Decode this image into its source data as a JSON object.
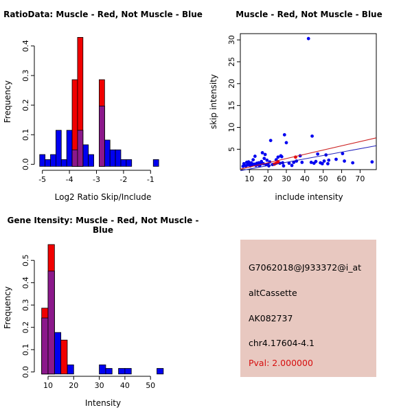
{
  "chart_data": [
    {
      "type": "bar",
      "subtype": "overlaid-histograms",
      "title": "RatioData: Muscle - Red, Not Muscle - Blue",
      "xlabel": "Log2 Ratio Skip/Include",
      "ylabel": "Frequency",
      "legend": {
        "muscle": "Red",
        "not_muscle": "Blue",
        "overlap": "Purple"
      },
      "xlim": [
        -5.2,
        -0.6
      ],
      "ylim": [
        0,
        0.43
      ],
      "grid": false,
      "bin_width": 0.2,
      "x_ticks": [
        {
          "v": -5,
          "l": "-5"
        },
        {
          "v": -4,
          "l": "-4"
        },
        {
          "v": -3,
          "l": "-3"
        },
        {
          "v": -2,
          "l": "-2"
        },
        {
          "v": -1,
          "l": "-1"
        }
      ],
      "y_ticks": [
        {
          "v": 0.0,
          "l": "0.0"
        },
        {
          "v": 0.1,
          "l": "0.1"
        },
        {
          "v": 0.2,
          "l": "0.2"
        },
        {
          "v": 0.3,
          "l": "0.3"
        },
        {
          "v": 0.4,
          "l": "0.4"
        }
      ],
      "blue_bins": [
        [
          -5.1,
          0.033
        ],
        [
          -4.9,
          0.016
        ],
        [
          -4.7,
          0.033
        ],
        [
          -4.5,
          0.115
        ],
        [
          -4.3,
          0.016
        ],
        [
          -4.1,
          0.115
        ],
        [
          -3.9,
          0.049
        ],
        [
          -3.7,
          0.115
        ],
        [
          -3.5,
          0.066
        ],
        [
          -3.3,
          0.033
        ],
        [
          -2.9,
          0.197
        ],
        [
          -2.7,
          0.082
        ],
        [
          -2.5,
          0.049
        ],
        [
          -2.3,
          0.049
        ],
        [
          -2.1,
          0.016
        ],
        [
          -1.9,
          0.016
        ],
        [
          -0.9,
          0.016
        ]
      ],
      "red_bins": [
        [
          -3.9,
          0.286
        ],
        [
          -3.7,
          0.429
        ],
        [
          -2.9,
          0.286
        ]
      ]
    },
    {
      "type": "scatter",
      "title": "Muscle - Red, Not Muscle - Blue",
      "xlabel": "include intensity",
      "ylabel": "skip intensity",
      "xlim": [
        5,
        79
      ],
      "ylim": [
        0.3,
        31.5
      ],
      "grid": false,
      "x_ticks": [
        {
          "v": 10,
          "l": "10"
        },
        {
          "v": 20,
          "l": "20"
        },
        {
          "v": 30,
          "l": "30"
        },
        {
          "v": 40,
          "l": "40"
        },
        {
          "v": 50,
          "l": "50"
        },
        {
          "v": 60,
          "l": "60"
        },
        {
          "v": 70,
          "l": "70"
        }
      ],
      "y_ticks": [
        {
          "v": 5,
          "l": "5"
        },
        {
          "v": 10,
          "l": "10"
        },
        {
          "v": 15,
          "l": "15"
        },
        {
          "v": 20,
          "l": "20"
        },
        {
          "v": 25,
          "l": "25"
        },
        {
          "v": 30,
          "l": "30"
        }
      ],
      "blue_points": [
        [
          6.5,
          1.1
        ],
        [
          7,
          1.7
        ],
        [
          8,
          1.2
        ],
        [
          8.5,
          2.0
        ],
        [
          9,
          1.4
        ],
        [
          9.5,
          2.1
        ],
        [
          10,
          1.6
        ],
        [
          10.5,
          1.2
        ],
        [
          11,
          1.9
        ],
        [
          11.5,
          1.4
        ],
        [
          12,
          2.6
        ],
        [
          12.5,
          1.6
        ],
        [
          13,
          3.4
        ],
        [
          13.5,
          1.3
        ],
        [
          14,
          1.8
        ],
        [
          14.5,
          1.5
        ],
        [
          15,
          1.9
        ],
        [
          15.5,
          1.2
        ],
        [
          16,
          1.6
        ],
        [
          16.5,
          2.2
        ],
        [
          17,
          4.2
        ],
        [
          17.5,
          1.7
        ],
        [
          18,
          2.9
        ],
        [
          18.5,
          3.8
        ],
        [
          19,
          1.5
        ],
        [
          19.5,
          2.5
        ],
        [
          20,
          1.6
        ],
        [
          20.5,
          1.2
        ],
        [
          21,
          2.1
        ],
        [
          21.5,
          7.0
        ],
        [
          22.5,
          1.5
        ],
        [
          23.5,
          1.6
        ],
        [
          24.5,
          2.6
        ],
        [
          25.5,
          3.2
        ],
        [
          26.5,
          1.8
        ],
        [
          27,
          3.5
        ],
        [
          27.5,
          3.3
        ],
        [
          28,
          1.9
        ],
        [
          28.5,
          1.2
        ],
        [
          29,
          8.3
        ],
        [
          30,
          6.5
        ],
        [
          31.5,
          1.8
        ],
        [
          33,
          1.3
        ],
        [
          34,
          2.0
        ],
        [
          35.5,
          2.3
        ],
        [
          37.5,
          3.5
        ],
        [
          38.5,
          2.0
        ],
        [
          42,
          30.3
        ],
        [
          43.5,
          2.0
        ],
        [
          44,
          8.0
        ],
        [
          45,
          1.8
        ],
        [
          46,
          2.2
        ],
        [
          47,
          3.9
        ],
        [
          48.5,
          1.9
        ],
        [
          49.5,
          1.7
        ],
        [
          50.5,
          2.3
        ],
        [
          51.5,
          3.7
        ],
        [
          52.5,
          1.7
        ],
        [
          53,
          2.5
        ],
        [
          57,
          2.7
        ],
        [
          60.5,
          4.0
        ],
        [
          61.5,
          2.3
        ],
        [
          66,
          1.9
        ],
        [
          76.5,
          2.1
        ]
      ],
      "red_points": [
        [
          23.5,
          1.6
        ],
        [
          24.5,
          1.8
        ],
        [
          25.5,
          2.1
        ],
        [
          35,
          3.2
        ]
      ],
      "red_line": [
        [
          5.1,
          0.45
        ],
        [
          78.7,
          7.6
        ]
      ],
      "blue_line": [
        [
          5.1,
          0.1
        ],
        [
          78.7,
          5.8
        ]
      ]
    },
    {
      "type": "bar",
      "subtype": "overlaid-histograms",
      "title": "Gene Itensity: Muscle - Red, Not Muscle - Blue",
      "xlabel": "Intensity",
      "ylabel": "Frequency",
      "legend": {
        "muscle": "Red",
        "not_muscle": "Blue",
        "overlap": "Purple"
      },
      "xlim": [
        6,
        57
      ],
      "ylim": [
        0,
        0.58
      ],
      "grid": false,
      "bin_width": 2.5,
      "x_ticks": [
        {
          "v": 10,
          "l": "10"
        },
        {
          "v": 20,
          "l": "20"
        },
        {
          "v": 30,
          "l": "30"
        },
        {
          "v": 40,
          "l": "40"
        },
        {
          "v": 50,
          "l": "50"
        }
      ],
      "y_ticks": [
        {
          "v": 0.0,
          "l": "0.0"
        },
        {
          "v": 0.1,
          "l": "0.1"
        },
        {
          "v": 0.2,
          "l": "0.2"
        },
        {
          "v": 0.3,
          "l": "0.3"
        },
        {
          "v": 0.4,
          "l": "0.4"
        },
        {
          "v": 0.5,
          "l": "0.5"
        }
      ],
      "blue_bins": [
        [
          7.5,
          0.242
        ],
        [
          10,
          0.452
        ],
        [
          12.5,
          0.177
        ],
        [
          17.5,
          0.032
        ],
        [
          30,
          0.032
        ],
        [
          32.5,
          0.016
        ],
        [
          37.5,
          0.016
        ],
        [
          40,
          0.016
        ],
        [
          52.5,
          0.016
        ]
      ],
      "red_bins": [
        [
          7.5,
          0.286
        ],
        [
          10,
          0.571
        ],
        [
          15,
          0.143
        ]
      ]
    }
  ],
  "info_panel": {
    "probe_id": "G7062018@J933372@i_at",
    "event_type": "altCassette",
    "accession": "AK082737",
    "location": "chr4.17604-4.1",
    "pval_label": "Pval: 2.000000"
  },
  "colors": {
    "blue": "#0000F0",
    "red": "#F00000",
    "purple": "#8B188B",
    "red_line": "#CC2222",
    "blue_line": "#2222BB",
    "info_bg": "#E8C8C0",
    "pval_text": "#D60D0D",
    "axis": "#000000"
  }
}
